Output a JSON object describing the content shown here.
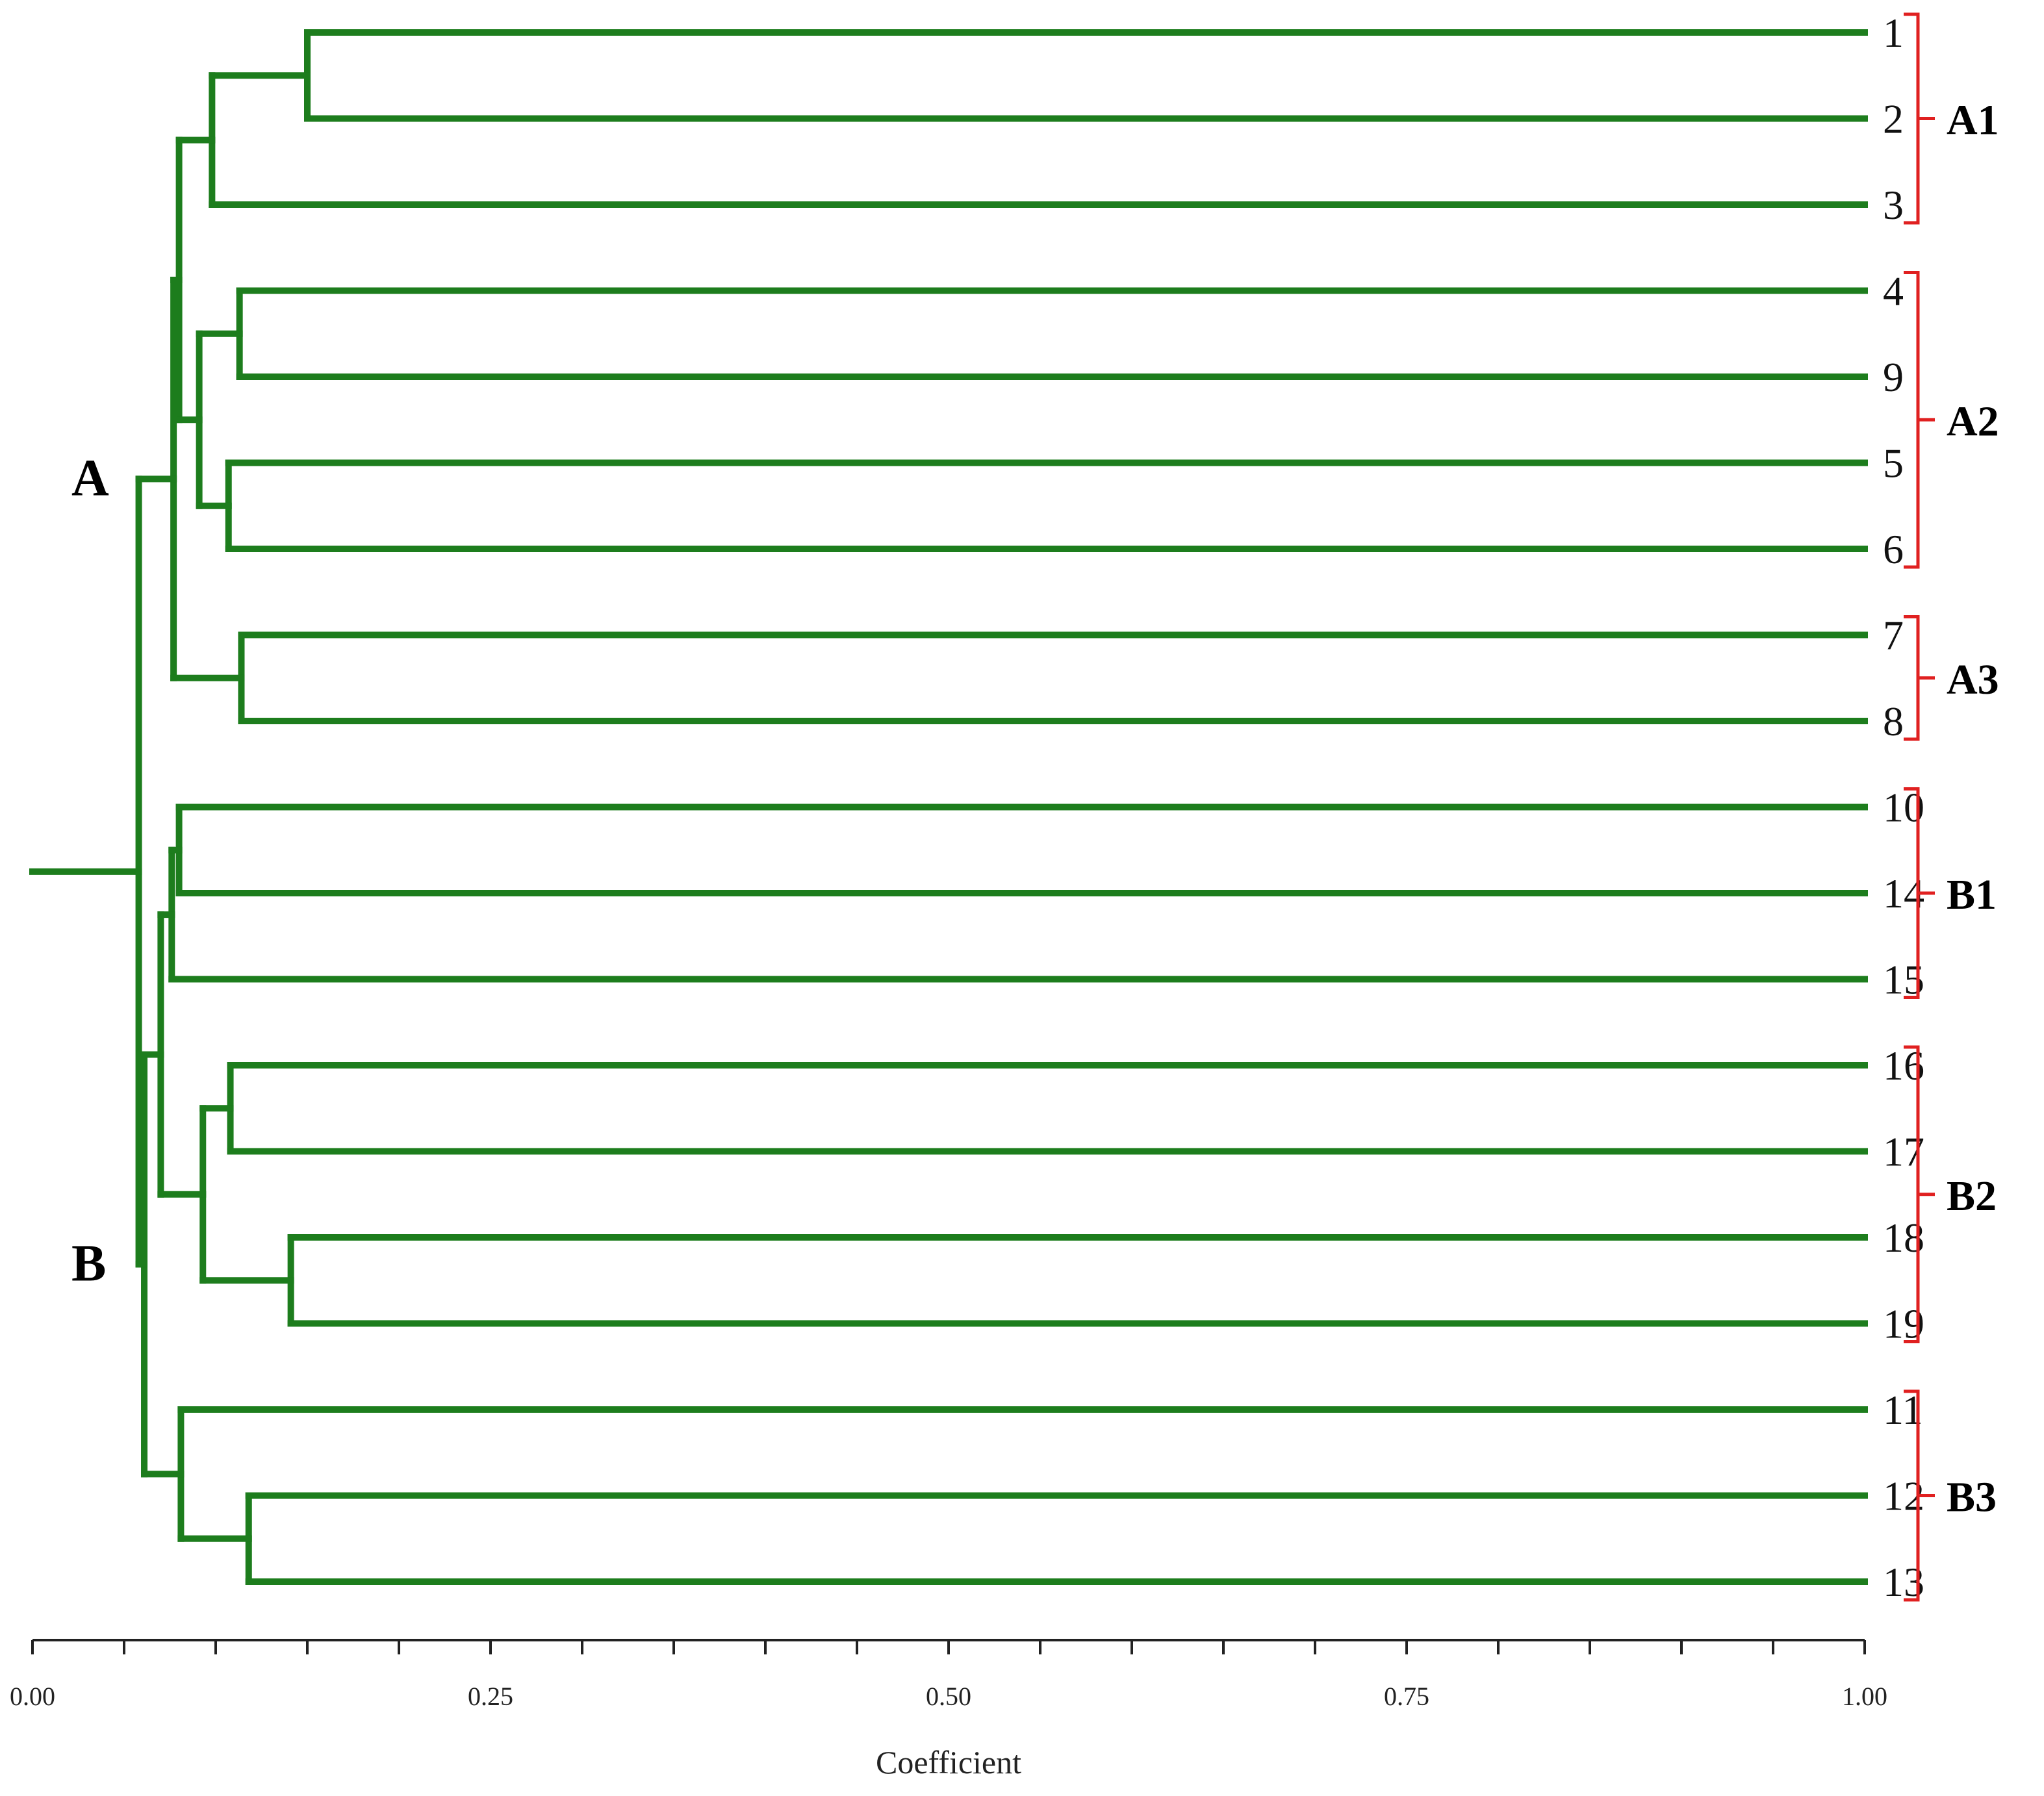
{
  "chart_data": {
    "type": "dendrogram",
    "xlabel": "Coefficient",
    "xlim": [
      0.0,
      1.0
    ],
    "tick_labels": [
      "0.00",
      "0.25",
      "0.50",
      "0.75",
      "1.00"
    ],
    "tick_values": [
      0.0,
      0.25,
      0.5,
      0.75,
      1.0
    ],
    "minor_tick_step": 0.05,
    "leaf_order": [
      "1",
      "2",
      "3",
      "4",
      "9",
      "5",
      "6",
      "7",
      "8",
      "10",
      "14",
      "15",
      "16",
      "17",
      "18",
      "19",
      "11",
      "12",
      "13"
    ],
    "merges": [
      {
        "id": "m1",
        "children": [
          "1",
          "2"
        ],
        "value": 0.15
      },
      {
        "id": "m2",
        "children": [
          "m1",
          "3"
        ],
        "value": 0.098
      },
      {
        "id": "m3",
        "children": [
          "4",
          "9"
        ],
        "value": 0.113
      },
      {
        "id": "m4",
        "children": [
          "5",
          "6"
        ],
        "value": 0.107
      },
      {
        "id": "m5",
        "children": [
          "m3",
          "m4"
        ],
        "value": 0.091
      },
      {
        "id": "m6",
        "children": [
          "m2",
          "m5"
        ],
        "value": 0.08
      },
      {
        "id": "m7",
        "children": [
          "7",
          "8"
        ],
        "value": 0.114
      },
      {
        "id": "m8",
        "children": [
          "m6",
          "m7"
        ],
        "value": 0.077
      },
      {
        "id": "m9",
        "children": [
          "10",
          "14"
        ],
        "value": 0.08
      },
      {
        "id": "m10",
        "children": [
          "m9",
          "15"
        ],
        "value": 0.076
      },
      {
        "id": "m11",
        "children": [
          "16",
          "17"
        ],
        "value": 0.108
      },
      {
        "id": "m12",
        "children": [
          "18",
          "19"
        ],
        "value": 0.141
      },
      {
        "id": "m13",
        "children": [
          "m11",
          "m12"
        ],
        "value": 0.093
      },
      {
        "id": "m14",
        "children": [
          "m10",
          "m13"
        ],
        "value": 0.07
      },
      {
        "id": "m15",
        "children": [
          "12",
          "13"
        ],
        "value": 0.118
      },
      {
        "id": "m16",
        "children": [
          "11",
          "m15"
        ],
        "value": 0.081
      },
      {
        "id": "m17",
        "children": [
          "m14",
          "m16"
        ],
        "value": 0.061
      },
      {
        "id": "m18",
        "children": [
          "m8",
          "m17"
        ],
        "value": 0.058
      }
    ],
    "root_value": 0.0,
    "groups": [
      {
        "label": "A1",
        "first_leaf": "1",
        "last_leaf": "3"
      },
      {
        "label": "A2",
        "first_leaf": "4",
        "last_leaf": "6"
      },
      {
        "label": "A3",
        "first_leaf": "7",
        "last_leaf": "8"
      },
      {
        "label": "B1",
        "first_leaf": "10",
        "last_leaf": "15"
      },
      {
        "label": "B2",
        "first_leaf": "16",
        "last_leaf": "19"
      },
      {
        "label": "B3",
        "first_leaf": "11",
        "last_leaf": "13"
      }
    ],
    "clusters": [
      {
        "label": "A",
        "node": "m8"
      },
      {
        "label": "B",
        "node": "m17"
      }
    ]
  },
  "colors": {
    "branch": "#1d7d1d",
    "bracket": "#e02020",
    "text": "#000000"
  }
}
